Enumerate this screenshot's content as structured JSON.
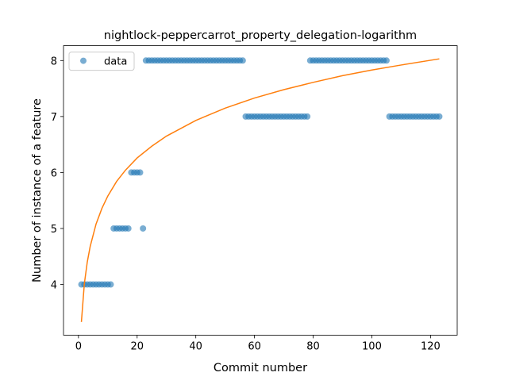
{
  "chart_data": {
    "type": "scatter",
    "title": "nightlock-peppercarrot_property_delegation-logarithm",
    "x_label": "Commit number",
    "y_label": "Number of instance of a feature",
    "xlim": [
      -5.1,
      129.1
    ],
    "ylim": [
      3.095,
      8.265
    ],
    "xticks": [
      0,
      20,
      40,
      60,
      80,
      100,
      120
    ],
    "yticks": [
      4,
      5,
      6,
      7,
      8
    ],
    "legend": "upper left",
    "series": [
      {
        "name": "data",
        "color": "#1f77b4",
        "kind": "scatter",
        "x": [
          1,
          2,
          3,
          4,
          5,
          6,
          7,
          8,
          9,
          10,
          11,
          12,
          13,
          14,
          15,
          16,
          17,
          18,
          19,
          20,
          21,
          22,
          23,
          24,
          25,
          26,
          27,
          28,
          29,
          30,
          31,
          32,
          33,
          34,
          35,
          36,
          37,
          38,
          39,
          40,
          41,
          42,
          43,
          44,
          45,
          46,
          47,
          48,
          49,
          50,
          51,
          52,
          53,
          54,
          55,
          56,
          57,
          58,
          59,
          60,
          61,
          62,
          63,
          64,
          65,
          66,
          67,
          68,
          69,
          70,
          71,
          72,
          73,
          74,
          75,
          76,
          77,
          78,
          79,
          80,
          81,
          82,
          83,
          84,
          85,
          86,
          87,
          88,
          89,
          90,
          91,
          92,
          93,
          94,
          95,
          96,
          97,
          98,
          99,
          100,
          101,
          102,
          103,
          104,
          105,
          106,
          107,
          108,
          109,
          110,
          111,
          112,
          113,
          114,
          115,
          116,
          117,
          118,
          119,
          120,
          121,
          122,
          123
        ],
        "values": [
          4,
          4,
          4,
          4,
          4,
          4,
          4,
          4,
          4,
          4,
          4,
          5,
          5,
          5,
          5,
          5,
          5,
          6,
          6,
          6,
          6,
          5,
          8,
          8,
          8,
          8,
          8,
          8,
          8,
          8,
          8,
          8,
          8,
          8,
          8,
          8,
          8,
          8,
          8,
          8,
          8,
          8,
          8,
          8,
          8,
          8,
          8,
          8,
          8,
          8,
          8,
          8,
          8,
          8,
          8,
          8,
          7,
          7,
          7,
          7,
          7,
          7,
          7,
          7,
          7,
          7,
          7,
          7,
          7,
          7,
          7,
          7,
          7,
          7,
          7,
          7,
          7,
          7,
          8,
          8,
          8,
          8,
          8,
          8,
          8,
          8,
          8,
          8,
          8,
          8,
          8,
          8,
          8,
          8,
          8,
          8,
          8,
          8,
          8,
          8,
          8,
          8,
          8,
          8,
          8,
          7,
          7,
          7,
          7,
          7,
          7,
          7,
          7,
          7,
          7,
          7,
          7,
          7,
          7,
          7,
          7,
          7,
          7
        ]
      },
      {
        "color": "#ff7f0e",
        "kind": "line",
        "x": [
          1,
          2,
          3,
          4,
          6,
          8,
          10,
          13,
          16,
          20,
          25,
          30,
          40,
          50,
          60,
          70,
          80,
          90,
          100,
          110,
          123
        ],
        "values": [
          3.33,
          4.01,
          4.4,
          4.68,
          5.08,
          5.36,
          5.58,
          5.84,
          6.04,
          6.26,
          6.47,
          6.65,
          6.93,
          7.15,
          7.33,
          7.48,
          7.61,
          7.73,
          7.83,
          7.92,
          8.03
        ]
      }
    ]
  }
}
